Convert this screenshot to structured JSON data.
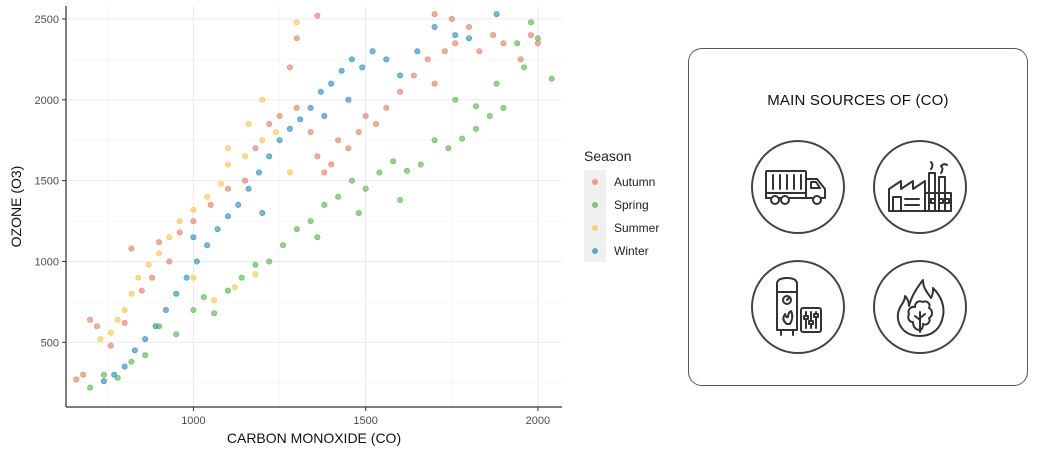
{
  "chart_data": {
    "type": "scatter",
    "title": "",
    "xlabel": "CARBON MONOXIDE (CO)",
    "ylabel": "OZONE (O3)",
    "xlim": [
      630,
      2070
    ],
    "ylim": [
      100,
      2580
    ],
    "x_ticks": [
      "1000",
      "1500",
      "2000"
    ],
    "y_ticks": [
      "500",
      "1000",
      "1500",
      "2000",
      "2500"
    ],
    "grid": true,
    "legend_title": "Season",
    "legend_placement": "right",
    "series": [
      {
        "name": "Autumn",
        "color": "#E5806B",
        "points": [
          [
            660,
            270
          ],
          [
            680,
            300
          ],
          [
            700,
            640
          ],
          [
            720,
            600
          ],
          [
            760,
            480
          ],
          [
            800,
            620
          ],
          [
            820,
            1080
          ],
          [
            850,
            820
          ],
          [
            880,
            900
          ],
          [
            900,
            1120
          ],
          [
            930,
            1000
          ],
          [
            960,
            1180
          ],
          [
            1000,
            1250
          ],
          [
            1050,
            1350
          ],
          [
            1100,
            1450
          ],
          [
            1150,
            1500
          ],
          [
            1180,
            1700
          ],
          [
            1220,
            1850
          ],
          [
            1250,
            1900
          ],
          [
            1280,
            2200
          ],
          [
            1300,
            1950
          ],
          [
            1340,
            1800
          ],
          [
            1360,
            1650
          ],
          [
            1380,
            1550
          ],
          [
            1400,
            1600
          ],
          [
            1420,
            1750
          ],
          [
            1450,
            1700
          ],
          [
            1480,
            1800
          ],
          [
            1500,
            1900
          ],
          [
            1530,
            1850
          ],
          [
            1560,
            1950
          ],
          [
            1600,
            2050
          ],
          [
            1640,
            2150
          ],
          [
            1680,
            2250
          ],
          [
            1700,
            2100
          ],
          [
            1730,
            2300
          ],
          [
            1760,
            2350
          ],
          [
            1800,
            2450
          ],
          [
            1830,
            2300
          ],
          [
            1870,
            2400
          ],
          [
            1900,
            2350
          ],
          [
            1950,
            2250
          ],
          [
            1980,
            2400
          ],
          [
            2000,
            2350
          ],
          [
            1700,
            2530
          ],
          [
            1750,
            2500
          ],
          [
            1360,
            2520
          ],
          [
            1300,
            2380
          ]
        ]
      },
      {
        "name": "Spring",
        "color": "#5DB553",
        "points": [
          [
            700,
            220
          ],
          [
            740,
            300
          ],
          [
            780,
            280
          ],
          [
            820,
            380
          ],
          [
            860,
            420
          ],
          [
            900,
            600
          ],
          [
            950,
            550
          ],
          [
            1000,
            700
          ],
          [
            1030,
            780
          ],
          [
            1060,
            680
          ],
          [
            1100,
            820
          ],
          [
            1140,
            900
          ],
          [
            1180,
            980
          ],
          [
            1220,
            1000
          ],
          [
            1260,
            1100
          ],
          [
            1300,
            1200
          ],
          [
            1340,
            1250
          ],
          [
            1380,
            1350
          ],
          [
            1420,
            1400
          ],
          [
            1460,
            1500
          ],
          [
            1500,
            1450
          ],
          [
            1540,
            1550
          ],
          [
            1580,
            1620
          ],
          [
            1620,
            1560
          ],
          [
            1660,
            1600
          ],
          [
            1700,
            1750
          ],
          [
            1740,
            1700
          ],
          [
            1780,
            1760
          ],
          [
            1820,
            1820
          ],
          [
            1860,
            1900
          ],
          [
            1900,
            1950
          ],
          [
            1960,
            2200
          ],
          [
            2000,
            2380
          ],
          [
            2040,
            2130
          ],
          [
            1980,
            2480
          ],
          [
            1940,
            2350
          ],
          [
            1880,
            2100
          ],
          [
            1820,
            1960
          ],
          [
            1760,
            2000
          ],
          [
            1600,
            1380
          ],
          [
            1480,
            1300
          ],
          [
            1360,
            1150
          ]
        ]
      },
      {
        "name": "Summer",
        "color": "#F6C74F",
        "points": [
          [
            730,
            520
          ],
          [
            760,
            560
          ],
          [
            780,
            640
          ],
          [
            800,
            700
          ],
          [
            820,
            800
          ],
          [
            840,
            900
          ],
          [
            870,
            980
          ],
          [
            900,
            1050
          ],
          [
            930,
            1150
          ],
          [
            960,
            1250
          ],
          [
            1000,
            1320
          ],
          [
            1040,
            1400
          ],
          [
            1080,
            1480
          ],
          [
            1100,
            1600
          ],
          [
            1150,
            1650
          ],
          [
            1200,
            1750
          ],
          [
            1240,
            1800
          ],
          [
            1280,
            1550
          ],
          [
            1300,
            2480
          ],
          [
            1200,
            2000
          ],
          [
            1160,
            1850
          ],
          [
            1100,
            1700
          ],
          [
            1000,
            900
          ],
          [
            1060,
            760
          ],
          [
            1120,
            840
          ],
          [
            1180,
            920
          ]
        ]
      },
      {
        "name": "Winter",
        "color": "#2E8FC0",
        "points": [
          [
            740,
            260
          ],
          [
            770,
            300
          ],
          [
            800,
            350
          ],
          [
            830,
            450
          ],
          [
            860,
            520
          ],
          [
            890,
            600
          ],
          [
            920,
            700
          ],
          [
            950,
            800
          ],
          [
            980,
            900
          ],
          [
            1010,
            1000
          ],
          [
            1040,
            1100
          ],
          [
            1070,
            1200
          ],
          [
            1100,
            1280
          ],
          [
            1130,
            1350
          ],
          [
            1160,
            1450
          ],
          [
            1190,
            1550
          ],
          [
            1220,
            1650
          ],
          [
            1250,
            1750
          ],
          [
            1280,
            1820
          ],
          [
            1310,
            1880
          ],
          [
            1340,
            1950
          ],
          [
            1370,
            2050
          ],
          [
            1400,
            2100
          ],
          [
            1430,
            2180
          ],
          [
            1460,
            2250
          ],
          [
            1490,
            2200
          ],
          [
            1520,
            2300
          ],
          [
            1560,
            2250
          ],
          [
            1600,
            2150
          ],
          [
            1650,
            2300
          ],
          [
            1700,
            2450
          ],
          [
            1760,
            2400
          ],
          [
            1800,
            2380
          ],
          [
            1880,
            2530
          ],
          [
            1450,
            2000
          ],
          [
            1380,
            1900
          ],
          [
            1200,
            1300
          ],
          [
            1000,
            1150
          ]
        ]
      }
    ]
  },
  "panel": {
    "title": "MAIN SOURCES OF (CO)",
    "icons": [
      {
        "name": "truck"
      },
      {
        "name": "factory"
      },
      {
        "name": "water-heater"
      },
      {
        "name": "forest-fire"
      }
    ]
  }
}
